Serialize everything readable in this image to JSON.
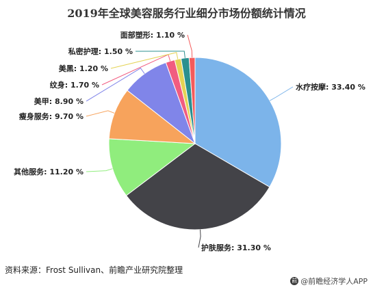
{
  "chart_data": {
    "type": "pie",
    "title": "2019年全球美容服务行业细分市场份额统计情况",
    "slices": [
      {
        "label": "水疗按摩",
        "value": 33.4,
        "display": "33.40 %",
        "color": "#7cb4ea"
      },
      {
        "label": "护肤服务",
        "value": 31.3,
        "display": "31.30 %",
        "color": "#434348"
      },
      {
        "label": "其他服务",
        "value": 11.2,
        "display": "11.20 %",
        "color": "#90ed7d"
      },
      {
        "label": "瘦身服务",
        "value": 9.7,
        "display": "9.70 %",
        "color": "#f7a35c"
      },
      {
        "label": "美甲",
        "value": 8.9,
        "display": "8.90 %",
        "color": "#8085e9"
      },
      {
        "label": "纹身",
        "value": 1.7,
        "display": "1.70 %",
        "color": "#f15c80"
      },
      {
        "label": "美黑",
        "value": 1.2,
        "display": "1.20 %",
        "color": "#e4d354"
      },
      {
        "label": "私密护理",
        "value": 1.5,
        "display": "1.50 %",
        "color": "#2b908f"
      },
      {
        "label": "面部塑形",
        "value": 1.1,
        "display": "1.10 %",
        "color": "#f45b5b"
      }
    ]
  },
  "footer": {
    "source": "资料来源：Frost Sullivan、前瞻产业研究院整理",
    "brand": "@前瞻经济学人APP",
    "brand_logo": "前"
  }
}
